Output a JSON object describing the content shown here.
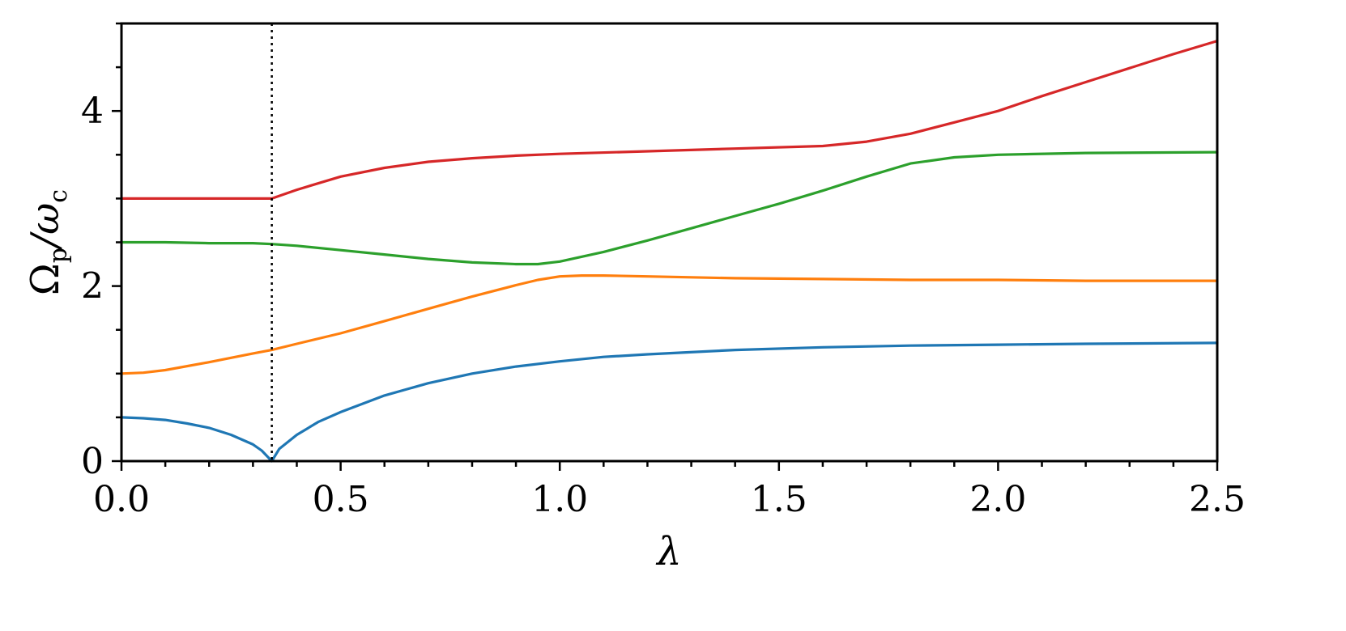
{
  "chart_data": {
    "type": "line",
    "title": "",
    "xlabel": "λ",
    "ylabel": {
      "main": "Ω",
      "sub1": "p",
      "mid": "/ω",
      "sub2": "c"
    },
    "xlim": [
      0,
      2.5
    ],
    "ylim": [
      0,
      5
    ],
    "x_ticks": [
      0.0,
      0.5,
      1.0,
      1.5,
      2.0,
      2.5
    ],
    "x_tick_labels": [
      "0.0",
      "0.5",
      "1.0",
      "1.5",
      "2.0",
      "2.5"
    ],
    "x_minor_step": 0.1,
    "y_ticks": [
      0,
      2,
      4
    ],
    "y_tick_labels": [
      "0",
      "2",
      "4"
    ],
    "y_minor_step": 0.5,
    "grid": false,
    "vline": {
      "x": 0.343,
      "style": "dotted",
      "color": "#000000"
    },
    "series": [
      {
        "color": "#1f77b4",
        "x": [
          0,
          0.05,
          0.1,
          0.15,
          0.2,
          0.25,
          0.3,
          0.32,
          0.343,
          0.36,
          0.4,
          0.45,
          0.5,
          0.6,
          0.7,
          0.8,
          0.9,
          1.0,
          1.1,
          1.2,
          1.4,
          1.6,
          1.8,
          2.0,
          2.2,
          2.5
        ],
        "y": [
          0.5,
          0.49,
          0.47,
          0.43,
          0.38,
          0.3,
          0.19,
          0.12,
          0.0,
          0.14,
          0.3,
          0.45,
          0.56,
          0.75,
          0.89,
          1.0,
          1.08,
          1.14,
          1.19,
          1.22,
          1.27,
          1.3,
          1.32,
          1.33,
          1.34,
          1.35
        ]
      },
      {
        "color": "#ff7f0e",
        "x": [
          0,
          0.05,
          0.1,
          0.2,
          0.3,
          0.343,
          0.4,
          0.5,
          0.6,
          0.7,
          0.8,
          0.9,
          0.95,
          1.0,
          1.05,
          1.1,
          1.2,
          1.4,
          1.6,
          1.8,
          2.0,
          2.2,
          2.5
        ],
        "y": [
          1.0,
          1.01,
          1.04,
          1.13,
          1.23,
          1.27,
          1.34,
          1.46,
          1.6,
          1.74,
          1.88,
          2.01,
          2.07,
          2.11,
          2.12,
          2.12,
          2.11,
          2.09,
          2.08,
          2.07,
          2.07,
          2.06,
          2.06
        ]
      },
      {
        "color": "#2ca02c",
        "x": [
          0,
          0.1,
          0.2,
          0.3,
          0.343,
          0.4,
          0.5,
          0.6,
          0.7,
          0.8,
          0.9,
          0.95,
          1.0,
          1.1,
          1.2,
          1.3,
          1.4,
          1.5,
          1.6,
          1.7,
          1.8,
          1.9,
          2.0,
          2.2,
          2.5
        ],
        "y": [
          2.5,
          2.5,
          2.49,
          2.49,
          2.48,
          2.46,
          2.41,
          2.36,
          2.31,
          2.27,
          2.25,
          2.25,
          2.28,
          2.39,
          2.52,
          2.66,
          2.8,
          2.94,
          3.09,
          3.25,
          3.4,
          3.47,
          3.5,
          3.52,
          3.53
        ]
      },
      {
        "color": "#d62728",
        "x": [
          0,
          0.2,
          0.343,
          0.4,
          0.5,
          0.6,
          0.7,
          0.8,
          0.9,
          1.0,
          1.2,
          1.4,
          1.6,
          1.7,
          1.8,
          1.9,
          2.0,
          2.1,
          2.2,
          2.3,
          2.4,
          2.5
        ],
        "y": [
          3.0,
          3.0,
          3.0,
          3.1,
          3.25,
          3.35,
          3.42,
          3.46,
          3.49,
          3.51,
          3.54,
          3.57,
          3.6,
          3.65,
          3.74,
          3.87,
          4.0,
          4.17,
          4.33,
          4.49,
          4.65,
          4.8
        ]
      }
    ]
  }
}
